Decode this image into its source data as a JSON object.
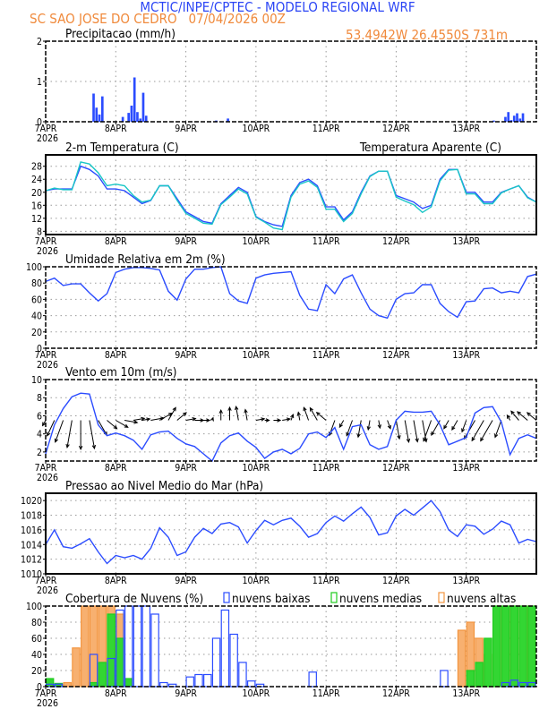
{
  "header": {
    "title": "MCTIC/INPE/CPTEC - MODELO REGIONAL WRF",
    "station": "SC SAO JOSE DO CEDRO   07/04/2026 00Z",
    "location": "53.4942W 26.4550S 731m"
  },
  "colors": {
    "title": "#2b45f5",
    "station": "#f08a3c",
    "series_blue": "#2b4cff",
    "apparent": "#19c6c6",
    "low_clouds": "#2b4cff",
    "medium_clouds": "#1fcc1f",
    "high_clouds": "#f3953f",
    "arrows": "#000000"
  },
  "x_axis": {
    "day_labels": [
      "7APR",
      "8APR",
      "9APR",
      "10APR",
      "11APR",
      "12APR",
      "13APR"
    ],
    "year_label": "2026",
    "range": [
      "07APR00Z",
      "13APR23Z"
    ]
  },
  "chart_data": [
    {
      "id": "precip",
      "type": "bar",
      "title": "Precipitacao (mm/h)",
      "ylim": [
        0,
        2
      ],
      "yticks": [
        0,
        1,
        2
      ],
      "grid": true,
      "bars": [
        {
          "t": "07APR16Z",
          "v": 0.7
        },
        {
          "t": "07APR17Z",
          "v": 0.35
        },
        {
          "t": "07APR18Z",
          "v": 0.18
        },
        {
          "t": "07APR19Z",
          "v": 0.63
        },
        {
          "t": "08APR02Z",
          "v": 0.12
        },
        {
          "t": "08APR04Z",
          "v": 0.22
        },
        {
          "t": "08APR05Z",
          "v": 0.4
        },
        {
          "t": "08APR06Z",
          "v": 1.1
        },
        {
          "t": "08APR07Z",
          "v": 0.24
        },
        {
          "t": "08APR08Z",
          "v": 0.08
        },
        {
          "t": "08APR09Z",
          "v": 0.72
        },
        {
          "t": "08APR10Z",
          "v": 0.15
        },
        {
          "t": "09APR10Z",
          "v": 0.03
        },
        {
          "t": "09APR14Z",
          "v": 0.08
        },
        {
          "t": "13APR09Z",
          "v": 0.03
        },
        {
          "t": "13APR13Z",
          "v": 0.12
        },
        {
          "t": "13APR14Z",
          "v": 0.24
        },
        {
          "t": "13APR15Z",
          "v": 0.04
        },
        {
          "t": "13APR16Z",
          "v": 0.15
        },
        {
          "t": "13APR17Z",
          "v": 0.21
        },
        {
          "t": "13APR18Z",
          "v": 0.08
        },
        {
          "t": "13APR19Z",
          "v": 0.21
        }
      ]
    },
    {
      "id": "temperature",
      "type": "line",
      "title": "2-m Temperatura (C)",
      "legend": "Temperatura Aparente (C)",
      "ylim": [
        7,
        31.5
      ],
      "yticks": [
        8,
        12,
        16,
        20,
        24,
        28
      ],
      "grid": true,
      "time_start": "07APR00Z",
      "time_step_hours": 3,
      "series": [
        {
          "id": "t2m",
          "values": [
            20.5,
            21,
            21,
            21,
            28,
            27,
            25,
            21,
            21,
            20.5,
            18.5,
            16.5,
            17.5,
            22,
            22,
            18,
            14,
            12.5,
            11,
            10.5,
            16.5,
            19,
            21.5,
            20,
            12.5,
            11,
            10,
            9.5,
            19,
            23,
            24,
            22,
            15.5,
            15.5,
            11.5,
            14,
            20,
            25,
            26.5,
            26.5,
            19,
            18,
            17,
            15,
            16,
            24,
            27,
            27,
            20,
            20,
            17,
            17,
            20,
            21,
            22,
            18.5,
            17
          ]
        },
        {
          "id": "apparent",
          "values": [
            20.5,
            21.3,
            20.8,
            20.8,
            29.3,
            28.7,
            26,
            22,
            22.5,
            22,
            19,
            17,
            17.6,
            22,
            22,
            17.5,
            13.5,
            12,
            10.5,
            10.2,
            16.2,
            18.5,
            21,
            19.5,
            12.3,
            10.8,
            9,
            8.5,
            18.5,
            22.5,
            23.5,
            21.5,
            14.8,
            14.8,
            11,
            13.5,
            19.5,
            24.8,
            26.5,
            26.5,
            18.5,
            17.3,
            16.2,
            13.8,
            15.5,
            23.5,
            26.8,
            27,
            19.5,
            19.5,
            16.5,
            16.5,
            19.8,
            21,
            22,
            18.3,
            17
          ]
        }
      ]
    },
    {
      "id": "humidity",
      "type": "line",
      "title": "Umidade Relativa em 2m (%)",
      "ylim": [
        0,
        100
      ],
      "yticks": [
        0,
        20,
        40,
        60,
        80,
        100
      ],
      "grid": true,
      "time_start": "07APR00Z",
      "time_step_hours": 3,
      "series": [
        {
          "id": "rh",
          "values": [
            82,
            86,
            77,
            79,
            79,
            68,
            58,
            67,
            93,
            97,
            99,
            99,
            98,
            96,
            70,
            59,
            85,
            97,
            97,
            99,
            100,
            67,
            58,
            55,
            86,
            90,
            92,
            93,
            94,
            65,
            48,
            46,
            78,
            67,
            85,
            90,
            68,
            48,
            40,
            37,
            60,
            67,
            68,
            78,
            78,
            55,
            45,
            38,
            57,
            58,
            73,
            74,
            68,
            70,
            68,
            88,
            91
          ]
        }
      ]
    },
    {
      "id": "wind",
      "type": "line",
      "title": "Vento em 10m (m/s)",
      "ylim": [
        1,
        10
      ],
      "yticks": [
        2,
        4,
        6,
        8,
        10
      ],
      "grid": true,
      "time_start": "07APR00Z",
      "time_step_hours": 3,
      "series": [
        {
          "id": "speed",
          "values": [
            1.8,
            5,
            6.8,
            8.1,
            8.5,
            8.4,
            5,
            3.8,
            4.1,
            3.8,
            3.3,
            2.3,
            3.9,
            4.2,
            4.3,
            3.5,
            2.9,
            2.6,
            1.8,
            0.8,
            3,
            3.8,
            4.1,
            3.2,
            2.5,
            1.3,
            2,
            2.3,
            1.8,
            2.4,
            4,
            4.2,
            3.6,
            4.7,
            2.3,
            4.8,
            5,
            2.8,
            2.3,
            2.6,
            5.5,
            6.5,
            6.4,
            6.4,
            6.5,
            5,
            2.8,
            3.2,
            3.6,
            6.3,
            6.9,
            7,
            5.3,
            1.7,
            3.5,
            3.9,
            3.5
          ]
        }
      ],
      "arrows_direction_from_deg": [
        30,
        25,
        20,
        10,
        0,
        350,
        330,
        310,
        300,
        280,
        260,
        260,
        260,
        240,
        210,
        230,
        260,
        270,
        270,
        200,
        180,
        180,
        170,
        170,
        260,
        270,
        270,
        260,
        200,
        170,
        160,
        150,
        130,
        20,
        30,
        20,
        10,
        10,
        350,
        340,
        350,
        350,
        350,
        350,
        20,
        30,
        30,
        30,
        20,
        30,
        30,
        30,
        20,
        150,
        140,
        130,
        130
      ],
      "arrows_baseline": 5.5
    },
    {
      "id": "pressure",
      "type": "line",
      "title": "Pressao ao Nivel Medio do Mar (hPa)",
      "ylim": [
        1010,
        1021
      ],
      "yticks": [
        1010,
        1012,
        1014,
        1016,
        1018,
        1020
      ],
      "grid": true,
      "time_start": "07APR00Z",
      "time_step_hours": 3,
      "series": [
        {
          "id": "mslp",
          "values": [
            1014,
            1016,
            1013.7,
            1013.5,
            1014.1,
            1014.8,
            1013,
            1011.4,
            1012.5,
            1012.2,
            1012.5,
            1012,
            1013.5,
            1016.3,
            1015,
            1012.5,
            1013,
            1015,
            1016.2,
            1015.5,
            1016.8,
            1017,
            1016.4,
            1014.2,
            1015.9,
            1017.3,
            1016.7,
            1017.3,
            1017.6,
            1016.5,
            1015,
            1015.5,
            1017,
            1017.9,
            1017.2,
            1018.2,
            1019.1,
            1017.7,
            1015.3,
            1015.6,
            1017.9,
            1018.8,
            1018,
            1019,
            1020,
            1018.5,
            1016,
            1015.1,
            1016.7,
            1016.5,
            1015.4,
            1016.1,
            1017.2,
            1016.7,
            1014.2,
            1014.7,
            1014.4
          ]
        }
      ]
    },
    {
      "id": "clouds",
      "type": "bar",
      "title": "Cobertura de Nuvens (%)",
      "ylim": [
        0,
        100
      ],
      "yticks": [
        0,
        20,
        40,
        60,
        80,
        100
      ],
      "grid": true,
      "time_start": "07APR00Z",
      "time_step_hours": 3,
      "series": [
        {
          "id": "high",
          "name": "nuvens altas",
          "values": [
            0,
            0,
            5,
            48,
            100,
            100,
            100,
            100,
            90,
            5,
            0,
            0,
            0,
            0,
            0,
            0,
            0,
            0,
            0,
            0,
            0,
            0,
            0,
            0,
            0,
            0,
            0,
            0,
            0,
            0,
            0,
            0,
            0,
            0,
            0,
            0,
            0,
            0,
            0,
            0,
            0,
            0,
            0,
            0,
            0,
            0,
            0,
            70,
            80,
            60,
            40,
            100,
            100,
            100,
            100,
            100
          ]
        },
        {
          "id": "medium",
          "name": "nuvens medias",
          "values": [
            10,
            4,
            0,
            0,
            0,
            5,
            30,
            90,
            60,
            10,
            0,
            0,
            0,
            0,
            0,
            0,
            0,
            0,
            0,
            0,
            0,
            0,
            0,
            0,
            0,
            0,
            0,
            0,
            0,
            0,
            0,
            0,
            0,
            0,
            0,
            0,
            0,
            0,
            0,
            0,
            0,
            0,
            0,
            0,
            0,
            0,
            0,
            0,
            20,
            30,
            60,
            100,
            100,
            100,
            100,
            100
          ]
        },
        {
          "id": "low",
          "name": "nuvens baixas",
          "values": [
            3,
            3,
            0,
            0,
            0,
            40,
            0,
            35,
            95,
            100,
            100,
            100,
            90,
            5,
            3,
            0,
            12,
            15,
            15,
            60,
            95,
            65,
            30,
            7,
            3,
            0,
            0,
            0,
            0,
            0,
            18,
            0,
            0,
            0,
            0,
            0,
            0,
            0,
            0,
            0,
            0,
            0,
            0,
            0,
            0,
            20,
            0,
            0,
            0,
            0,
            0,
            0,
            5,
            8,
            5,
            5
          ]
        }
      ]
    }
  ]
}
